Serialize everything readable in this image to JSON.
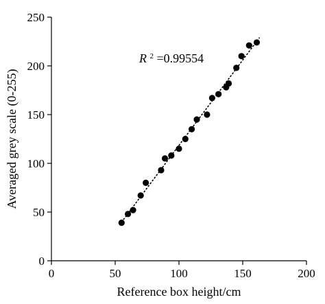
{
  "chart_data": {
    "type": "scatter",
    "xlabel": "Reference box height/cm",
    "ylabel": "Averaged grey scale (0-255)",
    "xlim": [
      0,
      200
    ],
    "ylim": [
      0,
      250
    ],
    "xticks": [
      0,
      50,
      100,
      150,
      200
    ],
    "yticks": [
      0,
      50,
      100,
      150,
      200,
      250
    ],
    "xtick_labels": [
      "0",
      "50",
      "100",
      "150",
      "200"
    ],
    "ytick_labels": [
      "0",
      "50",
      "100",
      "150",
      "200",
      "250"
    ],
    "grid": false,
    "annotation": {
      "variable": "R",
      "superscript": "2",
      "value_text": "=0.99554"
    },
    "trendline": {
      "style": "dotted",
      "x_start": 55,
      "x_end": 163
    },
    "series": [
      {
        "x": [
          55,
          60,
          64,
          70,
          74,
          86,
          89,
          94,
          100,
          105,
          110,
          114,
          122,
          126,
          131,
          137,
          139,
          145,
          149,
          155,
          161
        ],
        "y": [
          39,
          48,
          52,
          67,
          80,
          93,
          105,
          108,
          115,
          125,
          135,
          145,
          150,
          167,
          171,
          178,
          182,
          198,
          210,
          221,
          224
        ]
      }
    ]
  }
}
